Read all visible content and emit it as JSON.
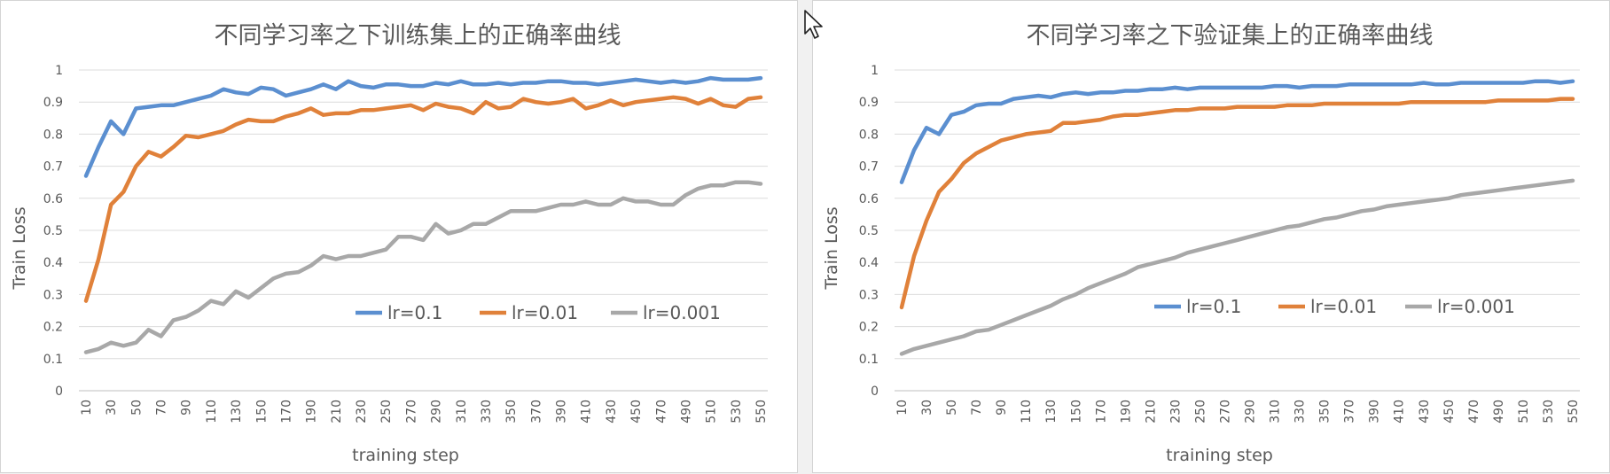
{
  "chart_data": [
    {
      "type": "line",
      "title": "不同学习率之下训练集上的正确率曲线",
      "xlabel": "training   step",
      "ylabel": "Train  Loss",
      "ylim": [
        0,
        1
      ],
      "yticks": [
        "0",
        "0.1",
        "0.2",
        "0.3",
        "0.4",
        "0.5",
        "0.6",
        "0.7",
        "0.8",
        "0.9",
        "1"
      ],
      "categories": [
        "10",
        "30",
        "50",
        "70",
        "90",
        "110",
        "130",
        "150",
        "170",
        "190",
        "210",
        "230",
        "250",
        "270",
        "290",
        "310",
        "330",
        "350",
        "370",
        "390",
        "410",
        "430",
        "450",
        "470",
        "490",
        "510",
        "530",
        "550"
      ],
      "x": [
        10,
        20,
        30,
        40,
        50,
        60,
        70,
        80,
        90,
        100,
        110,
        120,
        130,
        140,
        150,
        160,
        170,
        180,
        190,
        200,
        210,
        220,
        230,
        240,
        250,
        260,
        270,
        280,
        290,
        300,
        310,
        320,
        330,
        340,
        350,
        360,
        370,
        380,
        390,
        400,
        410,
        420,
        430,
        440,
        450,
        460,
        470,
        480,
        490,
        500,
        510,
        520,
        530,
        540,
        550
      ],
      "legend_position": "inside-bottom-right",
      "grid": true,
      "series": [
        {
          "name": "lr=0.1",
          "color": "#5b8fd0",
          "values": [
            0.67,
            0.76,
            0.84,
            0.8,
            0.88,
            0.885,
            0.89,
            0.89,
            0.9,
            0.91,
            0.92,
            0.94,
            0.93,
            0.925,
            0.945,
            0.94,
            0.92,
            0.93,
            0.94,
            0.955,
            0.94,
            0.965,
            0.95,
            0.945,
            0.955,
            0.955,
            0.95,
            0.95,
            0.96,
            0.955,
            0.965,
            0.955,
            0.955,
            0.96,
            0.955,
            0.96,
            0.96,
            0.965,
            0.965,
            0.96,
            0.96,
            0.955,
            0.96,
            0.965,
            0.97,
            0.965,
            0.96,
            0.965,
            0.96,
            0.965,
            0.975,
            0.97,
            0.97,
            0.97,
            0.975
          ]
        },
        {
          "name": "lr=0.01",
          "color": "#e0813a",
          "values": [
            0.28,
            0.41,
            0.58,
            0.62,
            0.7,
            0.745,
            0.73,
            0.76,
            0.795,
            0.79,
            0.8,
            0.81,
            0.83,
            0.845,
            0.84,
            0.84,
            0.855,
            0.865,
            0.88,
            0.86,
            0.865,
            0.865,
            0.875,
            0.875,
            0.88,
            0.885,
            0.89,
            0.875,
            0.895,
            0.885,
            0.88,
            0.865,
            0.9,
            0.88,
            0.885,
            0.91,
            0.9,
            0.895,
            0.9,
            0.91,
            0.88,
            0.89,
            0.905,
            0.89,
            0.9,
            0.905,
            0.91,
            0.915,
            0.91,
            0.895,
            0.91,
            0.89,
            0.885,
            0.91,
            0.915
          ]
        },
        {
          "name": "lr=0.001",
          "color": "#a8a8a8",
          "values": [
            0.12,
            0.13,
            0.15,
            0.14,
            0.15,
            0.19,
            0.17,
            0.22,
            0.23,
            0.25,
            0.28,
            0.27,
            0.31,
            0.29,
            0.32,
            0.35,
            0.365,
            0.37,
            0.39,
            0.42,
            0.41,
            0.42,
            0.42,
            0.43,
            0.44,
            0.48,
            0.48,
            0.47,
            0.52,
            0.49,
            0.5,
            0.52,
            0.52,
            0.54,
            0.56,
            0.56,
            0.56,
            0.57,
            0.58,
            0.58,
            0.59,
            0.58,
            0.58,
            0.6,
            0.59,
            0.59,
            0.58,
            0.58,
            0.61,
            0.63,
            0.64,
            0.64,
            0.65,
            0.65,
            0.645
          ]
        }
      ]
    },
    {
      "type": "line",
      "title": "不同学习率之下验证集上的正确率曲线",
      "xlabel": "training   step",
      "ylabel": "Train  Loss",
      "ylim": [
        0,
        1
      ],
      "yticks": [
        "0",
        "0.1",
        "0.2",
        "0.3",
        "0.4",
        "0.5",
        "0.6",
        "0.7",
        "0.8",
        "0.9",
        "1"
      ],
      "categories": [
        "10",
        "30",
        "50",
        "70",
        "90",
        "110",
        "130",
        "150",
        "170",
        "190",
        "210",
        "230",
        "250",
        "270",
        "290",
        "310",
        "330",
        "350",
        "370",
        "390",
        "410",
        "430",
        "450",
        "470",
        "490",
        "510",
        "530",
        "550"
      ],
      "x": [
        10,
        20,
        30,
        40,
        50,
        60,
        70,
        80,
        90,
        100,
        110,
        120,
        130,
        140,
        150,
        160,
        170,
        180,
        190,
        200,
        210,
        220,
        230,
        240,
        250,
        260,
        270,
        280,
        290,
        300,
        310,
        320,
        330,
        340,
        350,
        360,
        370,
        380,
        390,
        400,
        410,
        420,
        430,
        440,
        450,
        460,
        470,
        480,
        490,
        500,
        510,
        520,
        530,
        540,
        550
      ],
      "legend_position": "inside-bottom-right",
      "grid": true,
      "series": [
        {
          "name": "lr=0.1",
          "color": "#5b8fd0",
          "values": [
            0.65,
            0.75,
            0.82,
            0.8,
            0.86,
            0.87,
            0.89,
            0.895,
            0.895,
            0.91,
            0.915,
            0.92,
            0.915,
            0.925,
            0.93,
            0.925,
            0.93,
            0.93,
            0.935,
            0.935,
            0.94,
            0.94,
            0.945,
            0.94,
            0.945,
            0.945,
            0.945,
            0.945,
            0.945,
            0.945,
            0.95,
            0.95,
            0.945,
            0.95,
            0.95,
            0.95,
            0.955,
            0.955,
            0.955,
            0.955,
            0.955,
            0.955,
            0.96,
            0.955,
            0.955,
            0.96,
            0.96,
            0.96,
            0.96,
            0.96,
            0.96,
            0.965,
            0.965,
            0.96,
            0.965
          ]
        },
        {
          "name": "lr=0.01",
          "color": "#e0813a",
          "values": [
            0.26,
            0.42,
            0.53,
            0.62,
            0.66,
            0.71,
            0.74,
            0.76,
            0.78,
            0.79,
            0.8,
            0.805,
            0.81,
            0.835,
            0.835,
            0.84,
            0.845,
            0.855,
            0.86,
            0.86,
            0.865,
            0.87,
            0.875,
            0.875,
            0.88,
            0.88,
            0.88,
            0.885,
            0.885,
            0.885,
            0.885,
            0.89,
            0.89,
            0.89,
            0.895,
            0.895,
            0.895,
            0.895,
            0.895,
            0.895,
            0.895,
            0.9,
            0.9,
            0.9,
            0.9,
            0.9,
            0.9,
            0.9,
            0.905,
            0.905,
            0.905,
            0.905,
            0.905,
            0.91,
            0.91
          ]
        },
        {
          "name": "lr=0.001",
          "color": "#a8a8a8",
          "values": [
            0.115,
            0.13,
            0.14,
            0.15,
            0.16,
            0.17,
            0.185,
            0.19,
            0.205,
            0.22,
            0.235,
            0.25,
            0.265,
            0.285,
            0.3,
            0.32,
            0.335,
            0.35,
            0.365,
            0.385,
            0.395,
            0.405,
            0.415,
            0.43,
            0.44,
            0.45,
            0.46,
            0.47,
            0.48,
            0.49,
            0.5,
            0.51,
            0.515,
            0.525,
            0.535,
            0.54,
            0.55,
            0.56,
            0.565,
            0.575,
            0.58,
            0.585,
            0.59,
            0.595,
            0.6,
            0.61,
            0.615,
            0.62,
            0.625,
            0.63,
            0.635,
            0.64,
            0.645,
            0.65,
            0.655
          ]
        }
      ]
    }
  ]
}
